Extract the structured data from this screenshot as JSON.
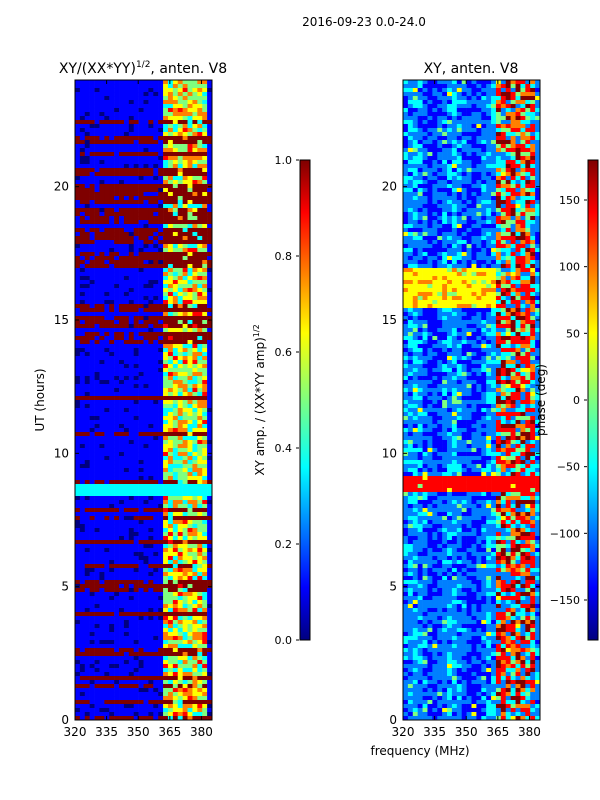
{
  "figure_title": "2016-09-23 0.0-24.0",
  "xlabel_shared": "frequency (MHz)",
  "chart_data": [
    {
      "type": "heatmap",
      "title": "XY/(XX*YY)^1/2, anten. V8",
      "title_main": "XY/(XX*YY)",
      "title_sup": "1/2",
      "title_tail": ", anten. V8",
      "xlabel": "",
      "ylabel": "UT (hours)",
      "xlim": [
        320,
        385
      ],
      "ylim": [
        0,
        24
      ],
      "xticks": [
        320,
        335,
        350,
        365,
        380
      ],
      "yticks": [
        0,
        5,
        10,
        15,
        20
      ],
      "colorbar": {
        "label": "XY amp. / (XX*YY amp)^1/2",
        "label_main": "XY amp. / (XX*YY amp)",
        "label_sup": "1/2",
        "range": [
          0.0,
          1.0
        ],
        "ticks": [
          "0.0",
          "0.2",
          "0.4",
          "0.6",
          "0.8",
          "1.0"
        ],
        "tick_values": [
          0.0,
          0.2,
          0.4,
          0.6,
          0.8,
          1.0
        ]
      },
      "colormap": "jet"
    },
    {
      "type": "heatmap",
      "title": "XY, anten. V8",
      "xlabel": "frequency (MHz)",
      "ylabel": "",
      "xlim": [
        320,
        385
      ],
      "ylim": [
        0,
        24
      ],
      "xticks": [
        320,
        335,
        350,
        365,
        380
      ],
      "yticks": [
        0,
        5,
        10,
        15,
        20
      ],
      "colorbar": {
        "label": "phase (deg)",
        "range": [
          -180,
          180
        ],
        "ticks": [
          "−150",
          "−100",
          "−50",
          "0",
          "50",
          "100",
          "150"
        ],
        "tick_values": [
          -150,
          -100,
          -50,
          0,
          50,
          100,
          150
        ]
      },
      "colormap": "jet"
    }
  ],
  "colors": {
    "jet": [
      "#00007f",
      "#0000ff",
      "#007fff",
      "#00ffff",
      "#7fff7f",
      "#ffff00",
      "#ff7f00",
      "#ff0000",
      "#7f0000"
    ]
  }
}
